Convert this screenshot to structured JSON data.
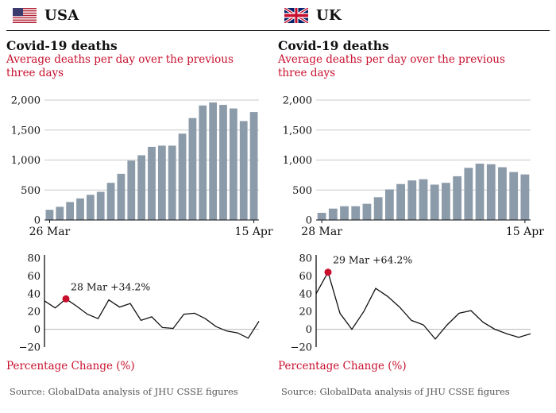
{
  "panels": [
    {
      "country": "USA",
      "flag": "us-flag",
      "title": "Covid-19 deaths",
      "subtitle": "Average deaths per day over the previous three days",
      "pct_label": "Percentage Change (%)",
      "source": "Source: GlobalData analysis of JHU CSSE figures"
    },
    {
      "country": "UK",
      "flag": "uk-flag",
      "title": "Covid-19 deaths",
      "subtitle": "Average deaths per day over the previous three days",
      "pct_label": "Percentage Change (%)",
      "source": "Source: GlobalData analysis of JHU CSSE figures"
    }
  ],
  "colors": {
    "bar": "#8c9ba9",
    "accent": "#c8102e",
    "line": "#111111"
  },
  "chart_data": [
    {
      "type": "bar",
      "panel": "USA",
      "title": "Covid-19 deaths",
      "subtitle": "Average deaths per day over the previous three days",
      "x_start_label": "26 Mar",
      "x_end_label": "15 Apr",
      "yticks": [
        "0",
        "500",
        "1,000",
        "1,500",
        "2,000"
      ],
      "ylim": [
        0,
        2000
      ],
      "values": [
        170,
        220,
        300,
        360,
        420,
        470,
        620,
        770,
        990,
        1080,
        1220,
        1240,
        1240,
        1440,
        1700,
        1910,
        1960,
        1920,
        1860,
        1650,
        1800
      ],
      "grid": true
    },
    {
      "type": "line",
      "panel": "USA",
      "ylabel": "Percentage Change (%)",
      "yticks": [
        "80",
        "60",
        "40",
        "20",
        "0",
        "−20"
      ],
      "ylim": [
        -20,
        80
      ],
      "values": [
        32,
        24,
        34.2,
        26,
        17,
        12,
        33,
        25,
        29,
        10,
        14,
        2,
        1,
        17,
        18,
        12,
        3,
        -2,
        -4,
        -10,
        9
      ],
      "annotation": {
        "index": 2,
        "text": "28 Mar +34.2%"
      }
    },
    {
      "type": "bar",
      "panel": "UK",
      "title": "Covid-19 deaths",
      "subtitle": "Average deaths per day over the previous three days",
      "x_start_label": "28 Mar",
      "x_end_label": "15 Apr",
      "yticks": [
        "0",
        "500",
        "1,000",
        "1,500",
        "2,000"
      ],
      "ylim": [
        0,
        2000
      ],
      "values": [
        120,
        190,
        230,
        230,
        270,
        380,
        510,
        600,
        660,
        680,
        590,
        620,
        730,
        870,
        940,
        930,
        880,
        800,
        760
      ],
      "grid": true
    },
    {
      "type": "line",
      "panel": "UK",
      "ylabel": "Percentage Change (%)",
      "yticks": [
        "80",
        "60",
        "40",
        "20",
        "0",
        "−20"
      ],
      "ylim": [
        -20,
        80
      ],
      "values": [
        40,
        64.2,
        18,
        0,
        20,
        46,
        37,
        25,
        10,
        5,
        -11,
        5,
        18,
        21,
        8,
        0,
        -5,
        -9,
        -5
      ],
      "annotation": {
        "index": 1,
        "text": "29 Mar +64.2%"
      }
    }
  ]
}
